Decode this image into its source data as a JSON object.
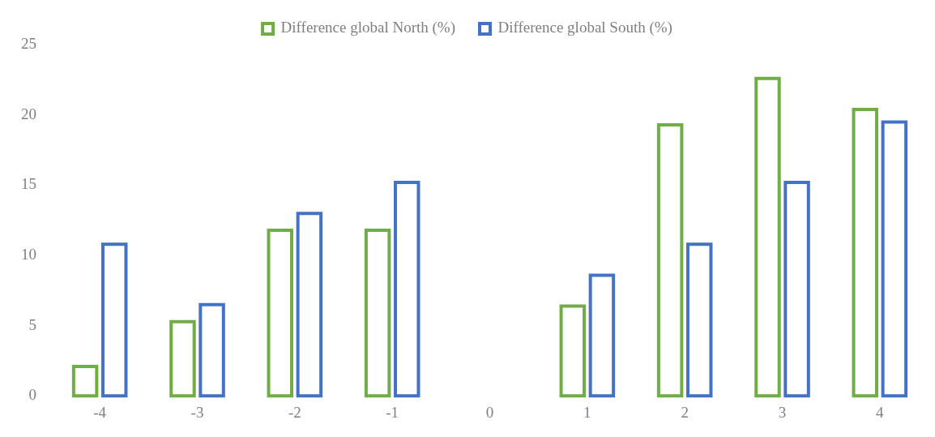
{
  "chart_data": {
    "type": "bar",
    "categories": [
      "-4",
      "-3",
      "-2",
      "-1",
      "0",
      "1",
      "2",
      "3",
      "4"
    ],
    "series": [
      {
        "name": "Difference global North (%)",
        "color": "#70ad47",
        "values": [
          2.2,
          5.4,
          11.9,
          11.9,
          null,
          6.5,
          19.4,
          22.7,
          20.5
        ]
      },
      {
        "name": "Difference global South (%)",
        "color": "#4472c4",
        "values": [
          10.9,
          6.6,
          13.1,
          15.3,
          null,
          8.7,
          10.9,
          15.3,
          19.6
        ]
      }
    ],
    "ylim": [
      0,
      25
    ],
    "yticks": [
      0,
      5,
      10,
      15,
      20,
      25
    ],
    "grid": false,
    "legend": "top"
  }
}
